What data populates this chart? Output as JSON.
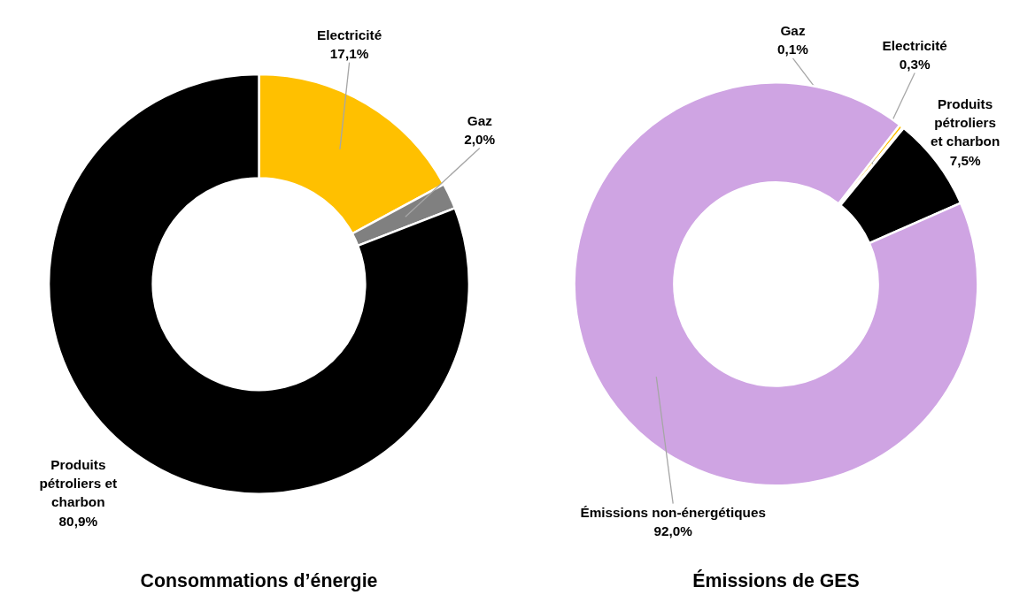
{
  "chart_data": [
    {
      "type": "donut",
      "title": "Consommations d’énergie",
      "categories": [
        "Electricité",
        "Gaz",
        "Produits pétroliers et charbon"
      ],
      "values": [
        17.1,
        2.0,
        80.9
      ],
      "colors": [
        "#ffc000",
        "#808080",
        "#000000"
      ],
      "value_labels": [
        "17,1%",
        "2,0%",
        "80,9%"
      ]
    },
    {
      "type": "donut",
      "title": "Émissions de GES",
      "categories": [
        "Electricité",
        "Gaz",
        "Produits pétroliers et charbon",
        "Émissions non-énergétiques"
      ],
      "values": [
        0.3,
        0.1,
        7.5,
        92.0
      ],
      "colors": [
        "#ffc000",
        "#808080",
        "#000000",
        "#cfa4e3"
      ],
      "value_labels": [
        "0,3%",
        "0,1%",
        "7,5%",
        "92,0%"
      ]
    }
  ]
}
